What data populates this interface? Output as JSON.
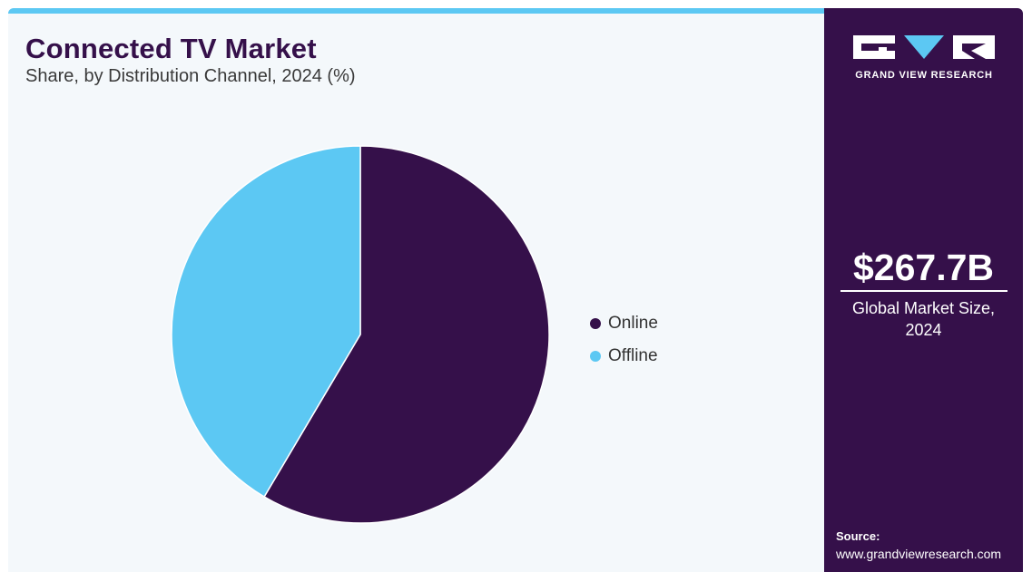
{
  "header": {
    "title": "Connected TV Market",
    "subtitle": "Share, by Distribution Channel, 2024 (%)"
  },
  "chart_data": {
    "type": "pie",
    "title": "Connected TV Market",
    "subtitle": "Share, by Distribution Channel, 2024 (%)",
    "categories": [
      "Online",
      "Offline"
    ],
    "values": [
      58.5,
      41.5
    ],
    "colors": [
      "#35104a",
      "#5cc8f3"
    ],
    "start_angle": "12 o'clock",
    "direction": "clockwise",
    "legend_position": "right"
  },
  "legend": {
    "items": [
      {
        "label": "Online",
        "color": "#35104a"
      },
      {
        "label": "Offline",
        "color": "#5cc8f3"
      }
    ]
  },
  "side_panel": {
    "logo_icon": "grand-view-research-logo",
    "brand": "GRAND VIEW RESEARCH",
    "market_size": "$267.7B",
    "market_size_label": "Global Market Size, 2024",
    "source_label": "Source:",
    "source_url": "www.grandviewresearch.com"
  },
  "colors": {
    "panel_bg": "#35104a",
    "accent": "#5cc8f3",
    "card_bg": "#f4f8fb"
  }
}
